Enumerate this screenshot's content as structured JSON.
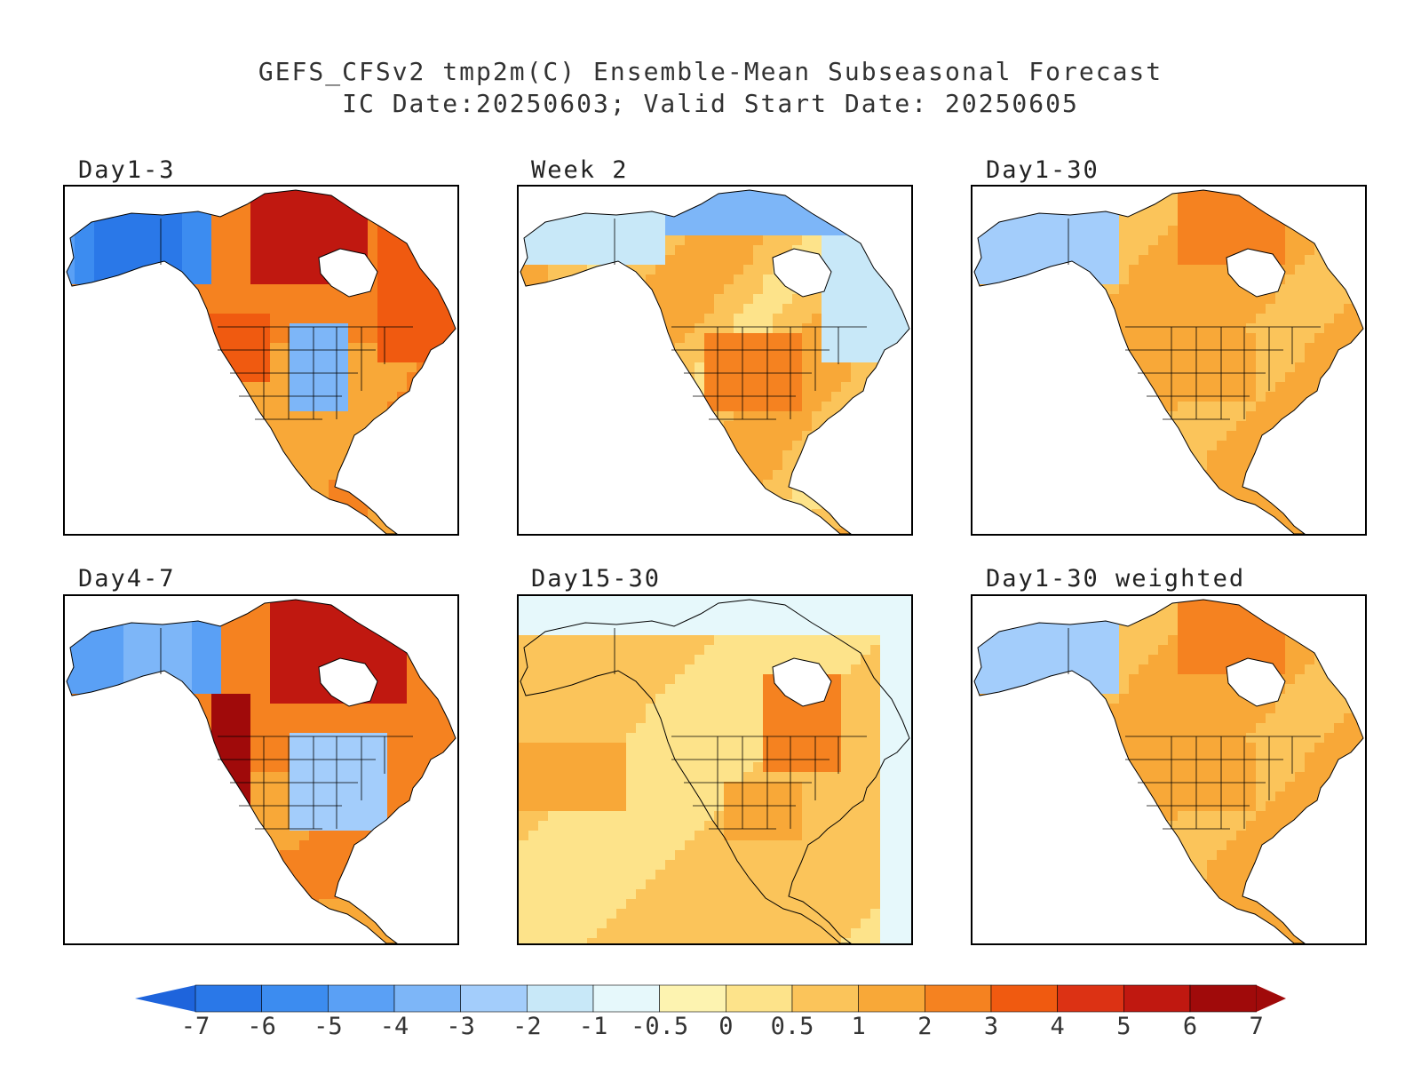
{
  "title": {
    "line1": "GEFS_CFSv2 tmp2m(C) Ensemble-Mean Subseasonal Forecast",
    "line2": "IC Date:20250603; Valid Start Date: 20250605"
  },
  "panels": [
    {
      "id": "day1-3",
      "label": "Day1-3",
      "pattern": "d13"
    },
    {
      "id": "week2",
      "label": "Week 2",
      "pattern": "w2"
    },
    {
      "id": "day1-30",
      "label": "Day1-30",
      "pattern": "d130"
    },
    {
      "id": "day4-7",
      "label": "Day4-7",
      "pattern": "d47"
    },
    {
      "id": "day15-30",
      "label": "Day15-30",
      "pattern": "d1530"
    },
    {
      "id": "day1-30-weighted",
      "label": "Day1-30 weighted",
      "pattern": "d130w"
    }
  ],
  "colorbar": {
    "tick_labels": [
      "-7",
      "-6",
      "-5",
      "-4",
      "-3",
      "-2",
      "-1",
      "-0.5",
      "0",
      "0.5",
      "1",
      "2",
      "3",
      "4",
      "5",
      "6",
      "7"
    ],
    "colors": [
      "#1e64dc",
      "#2a78e8",
      "#3c8cf0",
      "#5aa0f5",
      "#7db6f8",
      "#a3cdfb",
      "#c8e8f8",
      "#e6f8fb",
      "#fdf3b0",
      "#fde38a",
      "#fbc45a",
      "#f8a838",
      "#f58220",
      "#f05a10",
      "#dc3214",
      "#c01810",
      "#a00a0a"
    ],
    "arrow_left_color": "#1e64dc",
    "arrow_right_color": "#a00a0a"
  }
}
